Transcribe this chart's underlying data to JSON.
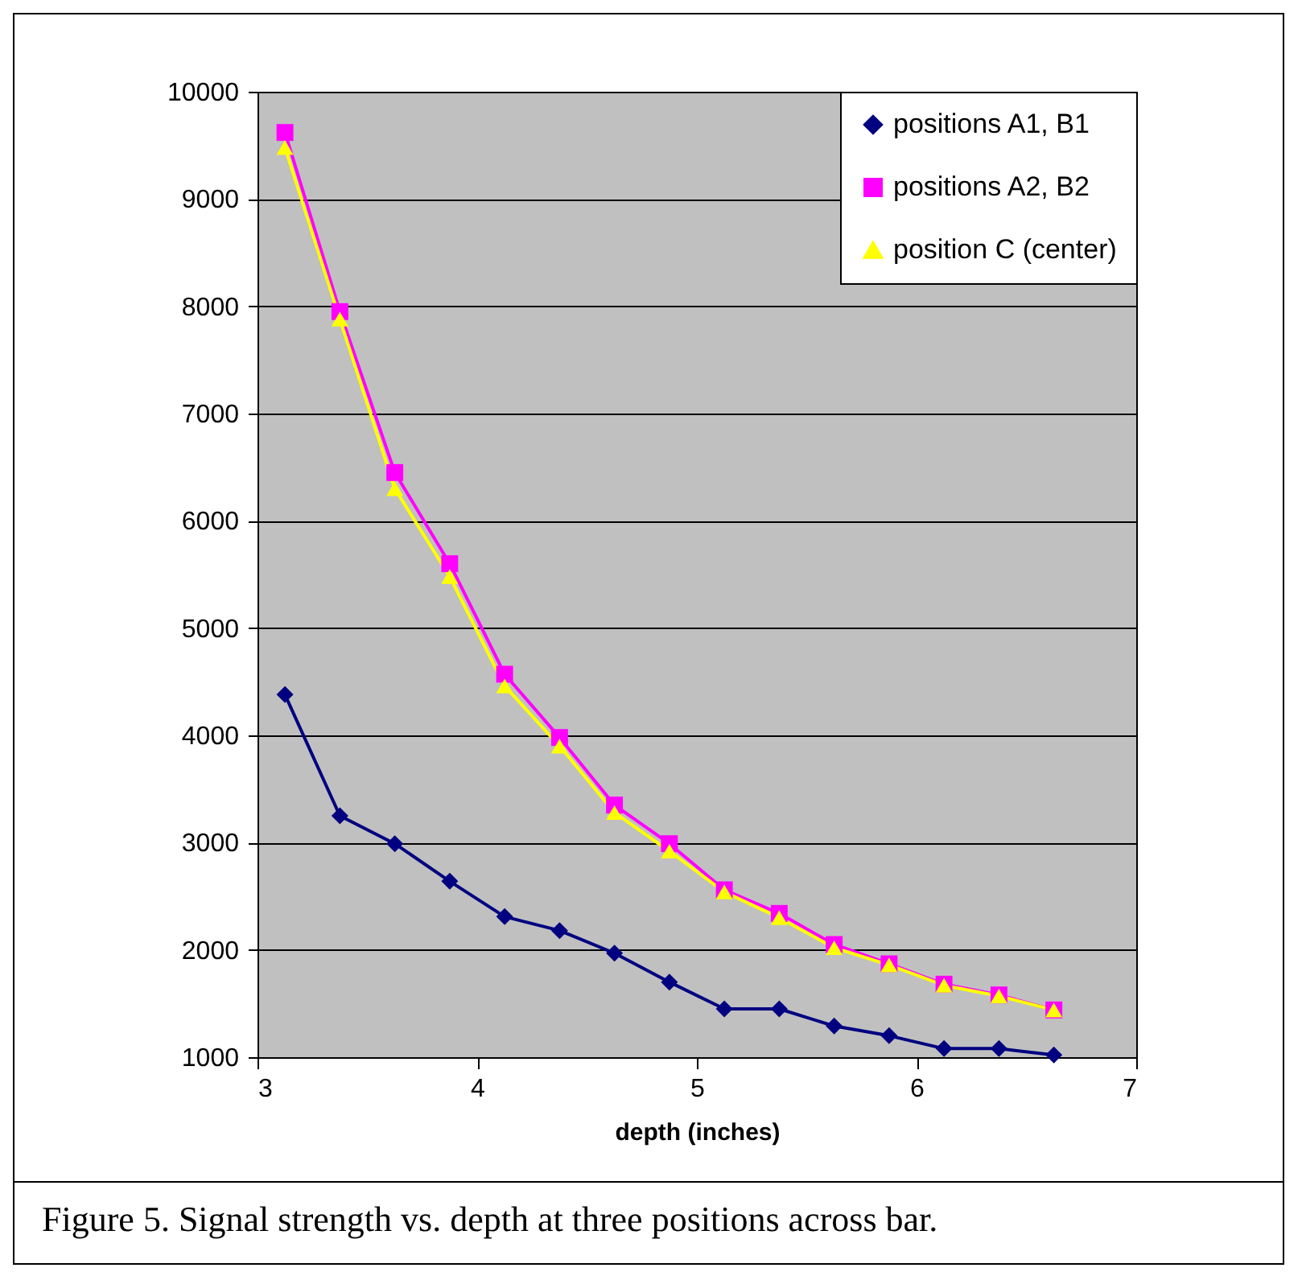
{
  "chart_data": {
    "type": "line",
    "xlabel": "depth (inches)",
    "annotations": [
      "Figure 5. Signal strength vs. depth at three positions across bar."
    ],
    "x": [
      3.125,
      3.375,
      3.625,
      3.875,
      4.125,
      4.375,
      4.625,
      4.875,
      5.125,
      5.375,
      5.625,
      5.875,
      6.125,
      6.375,
      6.625
    ],
    "series": [
      {
        "name": "positions A1, B1",
        "color": "#000080",
        "marker": "diamond",
        "values": [
          4380,
          3250,
          2990,
          2640,
          2310,
          2180,
          1970,
          1700,
          1450,
          1450,
          1290,
          1200,
          1080,
          1080,
          1020
        ]
      },
      {
        "name": "positions A2, B2",
        "color": "#ff00ff",
        "marker": "square",
        "values": [
          9620,
          7950,
          6450,
          5600,
          4570,
          3980,
          3350,
          2990,
          2560,
          2340,
          2050,
          1870,
          1680,
          1580,
          1440
        ]
      },
      {
        "name": "position C (center)",
        "color": "#ffff00",
        "marker": "triangle",
        "values": [
          9480,
          7880,
          6300,
          5480,
          4460,
          3900,
          3280,
          2920,
          2540,
          2300,
          2020,
          1860,
          1670,
          1570,
          1440
        ]
      }
    ],
    "xlim": [
      3,
      7
    ],
    "xticks": [
      3,
      4,
      5,
      6,
      7
    ],
    "ylim": [
      1000,
      10000
    ],
    "yticks": [
      1000,
      2000,
      3000,
      4000,
      5000,
      6000,
      7000,
      8000,
      9000,
      10000
    ],
    "grid": "y",
    "legend": "top right",
    "line_style": "solid"
  }
}
